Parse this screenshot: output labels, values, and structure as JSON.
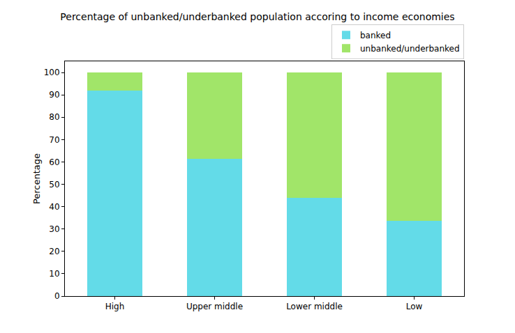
{
  "chart_data": {
    "type": "bar",
    "title": "Percentage of unbanked/underbanked population accoring to income economies",
    "y_label": "Percentage",
    "categories": [
      "High",
      "Upper middle",
      "Lower middle",
      "Low"
    ],
    "series": [
      {
        "name": "banked",
        "color": "#63dbe8",
        "values": [
          92,
          61.5,
          44,
          33.5
        ]
      },
      {
        "name": "unbanked/underbanked",
        "color": "#a1e569",
        "values": [
          8,
          38.5,
          56,
          66.5
        ]
      }
    ],
    "stacked": true,
    "ylim": [
      0,
      105
    ],
    "yticks": [
      0,
      10,
      20,
      30,
      40,
      50,
      60,
      70,
      80,
      90,
      100
    ],
    "grid": false,
    "legend": "upper right"
  }
}
